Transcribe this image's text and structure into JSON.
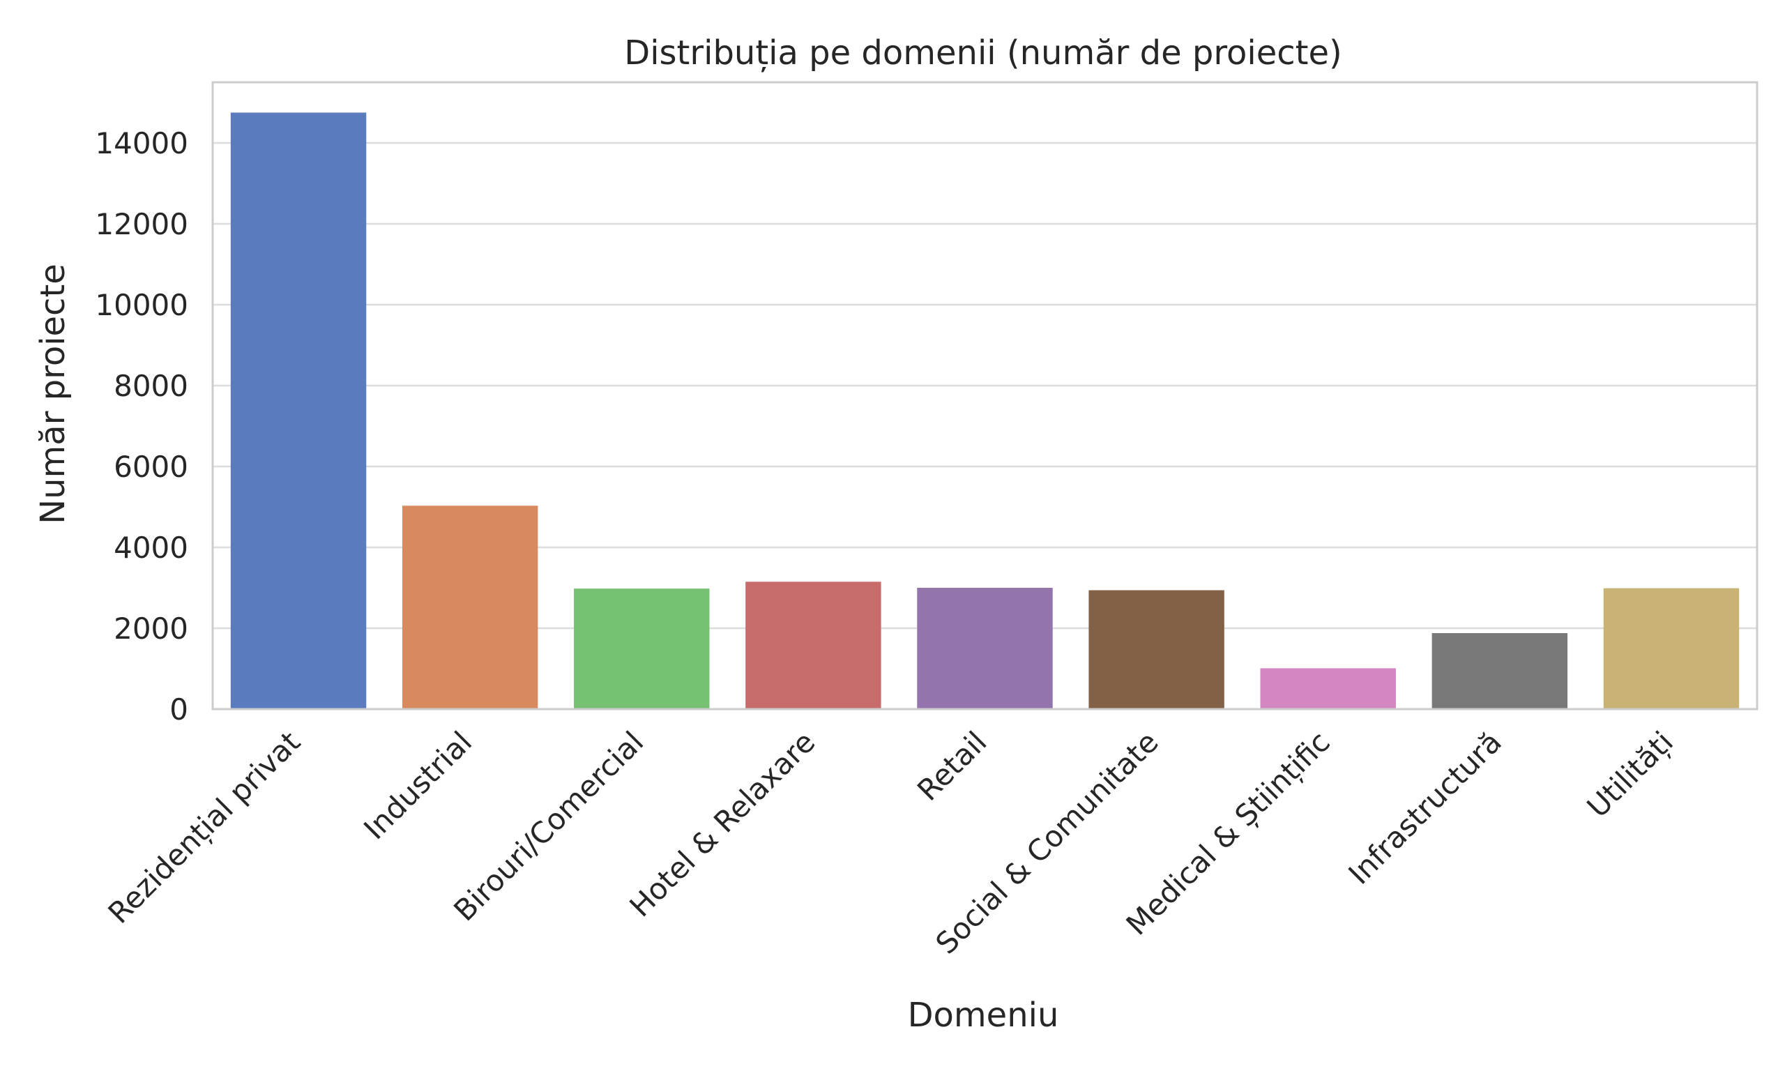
{
  "chart_data": {
    "type": "bar",
    "title": "Distribuția pe domenii (număr de proiecte)",
    "xlabel": "Domeniu",
    "ylabel": "Număr proiecte",
    "categories": [
      "Rezidențial privat",
      "Industrial",
      "Birouri/Comercial",
      "Hotel & Relaxare",
      "Retail",
      "Social & Comunitate",
      "Medical & Științific",
      "Infrastructură",
      "Utilități"
    ],
    "values": [
      14750,
      5030,
      2980,
      3150,
      3000,
      2940,
      1010,
      1880,
      2990
    ],
    "colors": [
      "#5b7bbf",
      "#d88a5e",
      "#76c172",
      "#c76c6b",
      "#9474ac",
      "#836147",
      "#d386bf",
      "#797979",
      "#c9b374"
    ],
    "yticks": [
      "0",
      "2000",
      "4000",
      "6000",
      "8000",
      "10000",
      "12000",
      "14000"
    ],
    "ylim": [
      0,
      15500
    ],
    "grid": true,
    "legend": "none"
  }
}
